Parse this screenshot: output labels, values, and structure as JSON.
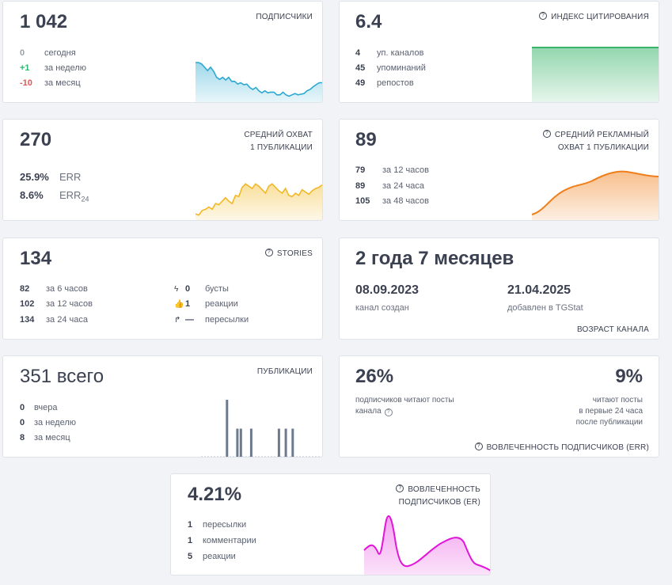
{
  "subs": {
    "value": "1 042",
    "title": "ПОДПИСЧИКИ",
    "rows": [
      {
        "num": "0",
        "label": "сегодня"
      },
      {
        "num": "+1",
        "label": "за неделю"
      },
      {
        "num": "-10",
        "label": "за месяц"
      }
    ],
    "trend": [
      40,
      40,
      42,
      47,
      52,
      47,
      53,
      62,
      65,
      62,
      66,
      62,
      68,
      68,
      72,
      70,
      73,
      72,
      77,
      80,
      77,
      82,
      85,
      82,
      85,
      84,
      84,
      88,
      88,
      84,
      88,
      90,
      88,
      86,
      88,
      87,
      86,
      82,
      80,
      76,
      73,
      70,
      70
    ]
  },
  "cit": {
    "value": "6.4",
    "title": "ИНДЕКС ЦИТИРОВАНИЯ",
    "rows": [
      {
        "num": "4",
        "label": "уп. каналов"
      },
      {
        "num": "45",
        "label": "упоминаний"
      },
      {
        "num": "49",
        "label": "репостов"
      }
    ]
  },
  "reach": {
    "value": "270",
    "title1": "СРЕДНИЙ ОХВАТ",
    "title2": "1 ПУБЛИКАЦИИ",
    "err1_num": "25.9%",
    "err1_label": "ERR",
    "err2_num": "8.6%",
    "err2_label": "ERR",
    "err2_sub": "24",
    "trend": [
      88,
      90,
      82,
      80,
      76,
      80,
      70,
      72,
      66,
      60,
      66,
      70,
      56,
      58,
      42,
      36,
      40,
      44,
      36,
      40,
      46,
      52,
      40,
      36,
      42,
      48,
      52,
      44,
      56,
      58,
      52,
      56,
      46,
      50,
      54,
      48,
      44,
      42,
      38
    ]
  },
  "adreach": {
    "value": "89",
    "title1": "СРЕДНИЙ РЕКЛАМНЫЙ",
    "title2": "ОХВАТ 1 ПУБЛИКАЦИИ",
    "rows": [
      {
        "num": "79",
        "label": "за 12 часов"
      },
      {
        "num": "89",
        "label": "за 24 часа"
      },
      {
        "num": "105",
        "label": "за 48 часов"
      }
    ]
  },
  "stories": {
    "value": "134",
    "title": "STORIES",
    "rows": [
      {
        "num": "82",
        "label": "за 6 часов"
      },
      {
        "num": "102",
        "label": "за 12 часов"
      },
      {
        "num": "134",
        "label": "за 24 часа"
      }
    ],
    "rows2": [
      {
        "icon": "lightning-icon",
        "glyph": "ϟ",
        "num": "0",
        "label": "бусты"
      },
      {
        "icon": "thumbs-up-icon",
        "glyph": "👍",
        "num": "1",
        "label": "реакции"
      },
      {
        "icon": "forward-arrow-icon",
        "glyph": "↱",
        "num": "—",
        "label": "пересылки"
      }
    ]
  },
  "age": {
    "value": "2 года 7 месяцев",
    "created_date": "08.09.2023",
    "created_label": "канал создан",
    "added_date": "21.04.2025",
    "added_label": "добавлен в TGStat",
    "title": "ВОЗРАСТ КАНАЛА"
  },
  "posts": {
    "value": "351 всего",
    "title": "ПУБЛИКАЦИИ",
    "rows": [
      {
        "num": "0",
        "label": "вчера"
      },
      {
        "num": "0",
        "label": "за неделю"
      },
      {
        "num": "8",
        "label": "за месяц"
      }
    ],
    "bars": [
      0,
      0,
      0,
      0,
      0,
      0,
      0,
      1,
      0,
      0,
      0.5,
      0.5,
      0,
      0,
      0.5,
      0,
      0,
      0,
      0,
      0,
      0,
      0,
      0.5,
      0,
      0.5,
      0,
      0.5,
      0,
      0,
      0,
      0,
      0,
      0,
      0,
      0
    ]
  },
  "engagement": {
    "left_value": "26%",
    "left_label1": "подписчиков читают посты",
    "left_label2": "канала",
    "right_value": "9%",
    "right_label1": "читают посты",
    "right_label2": "в первые 24 часа",
    "right_label3": "после публикации",
    "title": "ВОВЛЕЧЕННОСТЬ ПОДПИСЧИКОВ (ERR)"
  },
  "er": {
    "value": "4.21%",
    "title1": "ВОВЛЕЧЕННОСТЬ",
    "title2": "ПОДПИСЧИКОВ (ER)",
    "rows": [
      {
        "num": "1",
        "label": "пересылки"
      },
      {
        "num": "1",
        "label": "комментарии"
      },
      {
        "num": "5",
        "label": "реакции"
      }
    ]
  },
  "colors": {
    "subs": "#2aa9d0",
    "cit": "#3bb56b",
    "reach": "#f2b824",
    "adreach": "#ef7f1a",
    "posts": "#6b7a8f",
    "er": "#e016d8"
  }
}
